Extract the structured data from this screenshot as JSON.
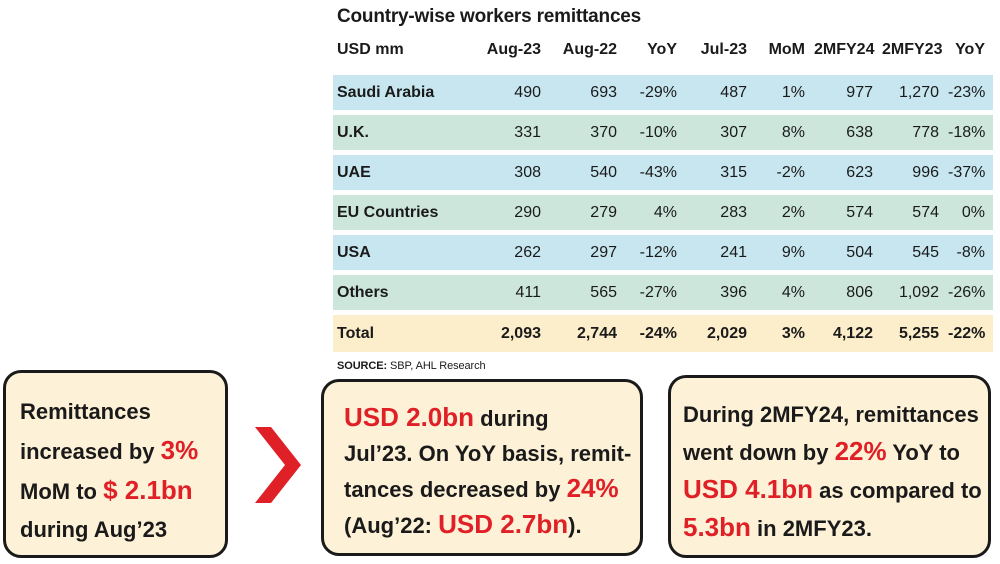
{
  "chart_data": {
    "type": "table",
    "title": "Country-wise workers remittances",
    "columns": [
      "USD mm",
      "Aug-23",
      "Aug-22",
      "YoY",
      "Jul-23",
      "MoM",
      "2MFY24",
      "2MFY23",
      "YoY"
    ],
    "rows": [
      {
        "label": "Saudi Arabia",
        "cells": [
          "490",
          "693",
          "-29%",
          "487",
          "1%",
          "977",
          "1,270",
          "-23%"
        ]
      },
      {
        "label": "U.K.",
        "cells": [
          "331",
          "370",
          "-10%",
          "307",
          "8%",
          "638",
          "778",
          "-18%"
        ]
      },
      {
        "label": "UAE",
        "cells": [
          "308",
          "540",
          "-43%",
          "315",
          "-2%",
          "623",
          "996",
          "-37%"
        ]
      },
      {
        "label": "EU Countries",
        "cells": [
          "290",
          "279",
          "4%",
          "283",
          "2%",
          "574",
          "574",
          "0%"
        ]
      },
      {
        "label": "USA",
        "cells": [
          "262",
          "297",
          "-12%",
          "241",
          "9%",
          "504",
          "545",
          "-8%"
        ]
      },
      {
        "label": "Others",
        "cells": [
          "411",
          "565",
          "-27%",
          "396",
          "4%",
          "806",
          "1,092",
          "-26%"
        ]
      },
      {
        "label": "Total",
        "cells": [
          "2,093",
          "2,744",
          "-24%",
          "2,029",
          "3%",
          "4,122",
          "5,255",
          "-22%"
        ]
      }
    ],
    "source_label": "SOURCE:",
    "source_text": " SBP, AHL Research"
  },
  "callouts": {
    "box1": {
      "t1": "Remittances",
      "t2": "increased by ",
      "r1": "3%",
      "t3": "MoM to ",
      "r2": "$ 2.1bn",
      "t4": "during Aug’23"
    },
    "box2": {
      "r1": "USD 2.0bn",
      "t1": " during",
      "t2": "Jul’23. On YoY basis, remit-",
      "t3": "tances decreased by ",
      "r2": "24%",
      "t4": "(Aug’22: ",
      "r3": "USD 2.7bn",
      "t5": ")."
    },
    "box3": {
      "t1": "During 2MFY24, remittances",
      "t2": "went down by ",
      "r1": "22%",
      "t3": " YoY to",
      "r2": "USD 4.1bn",
      "t4": " as compared to",
      "r3": "5.3bn",
      "t5": " in 2MFY23."
    }
  },
  "colors": {
    "accent_red": "#e02027",
    "row_blue": "#c7e6f0",
    "row_green": "#cce6dc",
    "row_total": "#fdeecb",
    "box_bg": "#fdf1d7"
  }
}
